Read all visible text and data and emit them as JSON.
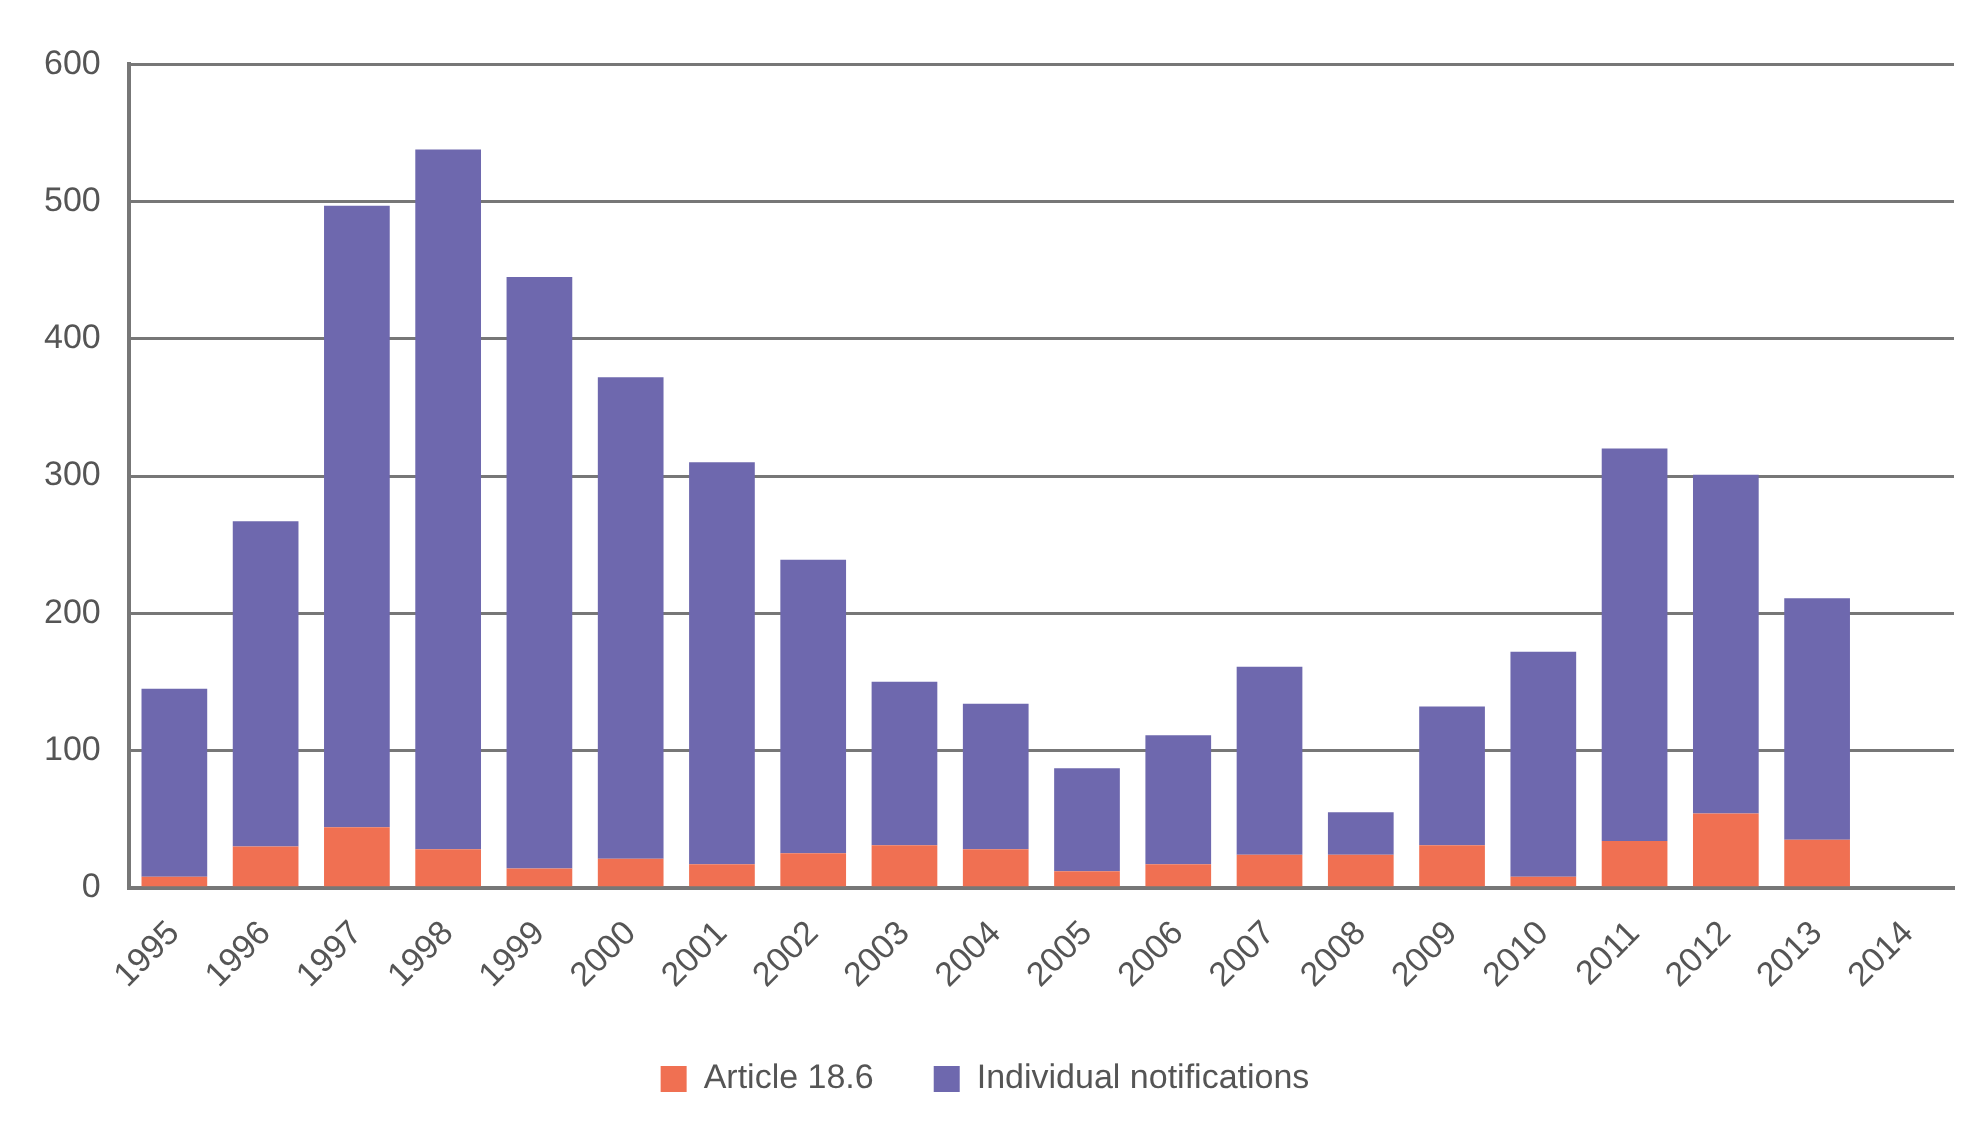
{
  "chart_data": {
    "type": "bar",
    "stacked": true,
    "categories": [
      "1995",
      "1996",
      "1997",
      "1998",
      "1999",
      "2000",
      "2001",
      "2002",
      "2003",
      "2004",
      "2005",
      "2006",
      "2007",
      "2008",
      "2009",
      "2010",
      "2011",
      "2012",
      "2013",
      "2014"
    ],
    "series": [
      {
        "name": "Article 18.6",
        "color": "#f07052",
        "values": [
          8,
          30,
          44,
          28,
          14,
          21,
          17,
          25,
          31,
          28,
          12,
          17,
          24,
          24,
          31,
          8,
          34,
          54,
          35,
          null
        ]
      },
      {
        "name": "Individual notifications",
        "color": "#6e68ae",
        "values": [
          137,
          237,
          453,
          510,
          431,
          351,
          293,
          214,
          119,
          106,
          75,
          94,
          137,
          31,
          101,
          164,
          286,
          247,
          176,
          null
        ]
      }
    ],
    "ylim": [
      0,
      600
    ],
    "yticks": [
      0,
      100,
      200,
      300,
      400,
      500,
      600
    ],
    "grid": "y",
    "legend": "bottom"
  }
}
